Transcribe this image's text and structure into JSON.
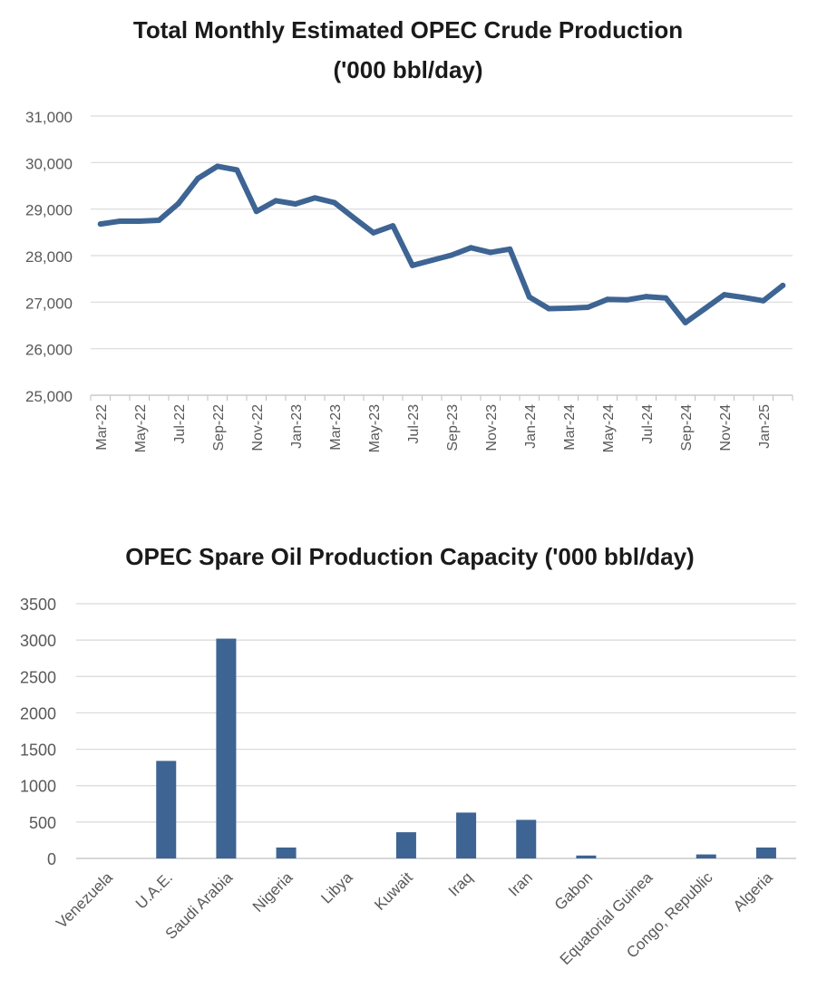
{
  "chart_data": [
    {
      "type": "line",
      "title": "Total Monthly Estimated OPEC Crude Production",
      "subtitle": "('000 bbl/day)",
      "xlabel": "",
      "ylabel": "",
      "ylim": [
        25000,
        31000
      ],
      "y_ticks": [
        "25,000",
        "26,000",
        "27,000",
        "28,000",
        "29,000",
        "30,000",
        "31,000"
      ],
      "x_tick_labels": [
        "Mar-22",
        "May-22",
        "Jul-22",
        "Sep-22",
        "Nov-22",
        "Jan-23",
        "Mar-23",
        "May-23",
        "Jul-23",
        "Sep-23",
        "Nov-23",
        "Jan-24",
        "Mar-24",
        "May-24",
        "Jul-24",
        "Sep-24",
        "Nov-24",
        "Jan-25"
      ],
      "grid": true,
      "legend": "none",
      "series_color": "#3d6493",
      "categories": [
        "Mar-22",
        "Apr-22",
        "May-22",
        "Jun-22",
        "Jul-22",
        "Aug-22",
        "Sep-22",
        "Oct-22",
        "Nov-22",
        "Dec-22",
        "Jan-23",
        "Feb-23",
        "Mar-23",
        "Apr-23",
        "May-23",
        "Jun-23",
        "Jul-23",
        "Aug-23",
        "Sep-23",
        "Oct-23",
        "Nov-23",
        "Dec-23",
        "Jan-24",
        "Feb-24",
        "Mar-24",
        "Apr-24",
        "May-24",
        "Jun-24",
        "Jul-24",
        "Aug-24",
        "Sep-24",
        "Oct-24",
        "Nov-24",
        "Dec-24",
        "Jan-25",
        "Feb-25"
      ],
      "series": [
        {
          "values": [
            28680,
            28740,
            28740,
            28760,
            29120,
            29660,
            29920,
            29840,
            28950,
            29180,
            29110,
            29240,
            29140,
            28810,
            28490,
            28640,
            27790,
            27900,
            28010,
            28170,
            28070,
            28140,
            27110,
            26860,
            26870,
            26890,
            27060,
            27050,
            27120,
            27090,
            26560,
            26860,
            27160,
            27100,
            27030,
            27360
          ]
        }
      ]
    },
    {
      "type": "bar",
      "title": "OPEC Spare Oil Production Capacity ('000 bbl/day)",
      "xlabel": "",
      "ylabel": "",
      "ylim": [
        0,
        3500
      ],
      "y_ticks": [
        "0",
        "500",
        "1000",
        "1500",
        "2000",
        "2500",
        "3000",
        "3500"
      ],
      "grid": true,
      "legend": "none",
      "series_color": "#3d6493",
      "categories": [
        "Venezuela",
        "U.A.E.",
        "Saudi Arabia",
        "Nigeria",
        "Libya",
        "Kuwait",
        "Iraq",
        "Iran",
        "Gabon",
        "Equatorial Guinea",
        "Congo, Republic",
        "Algeria"
      ],
      "values": [
        0,
        1340,
        3020,
        150,
        0,
        360,
        630,
        530,
        40,
        0,
        55,
        150
      ]
    }
  ]
}
